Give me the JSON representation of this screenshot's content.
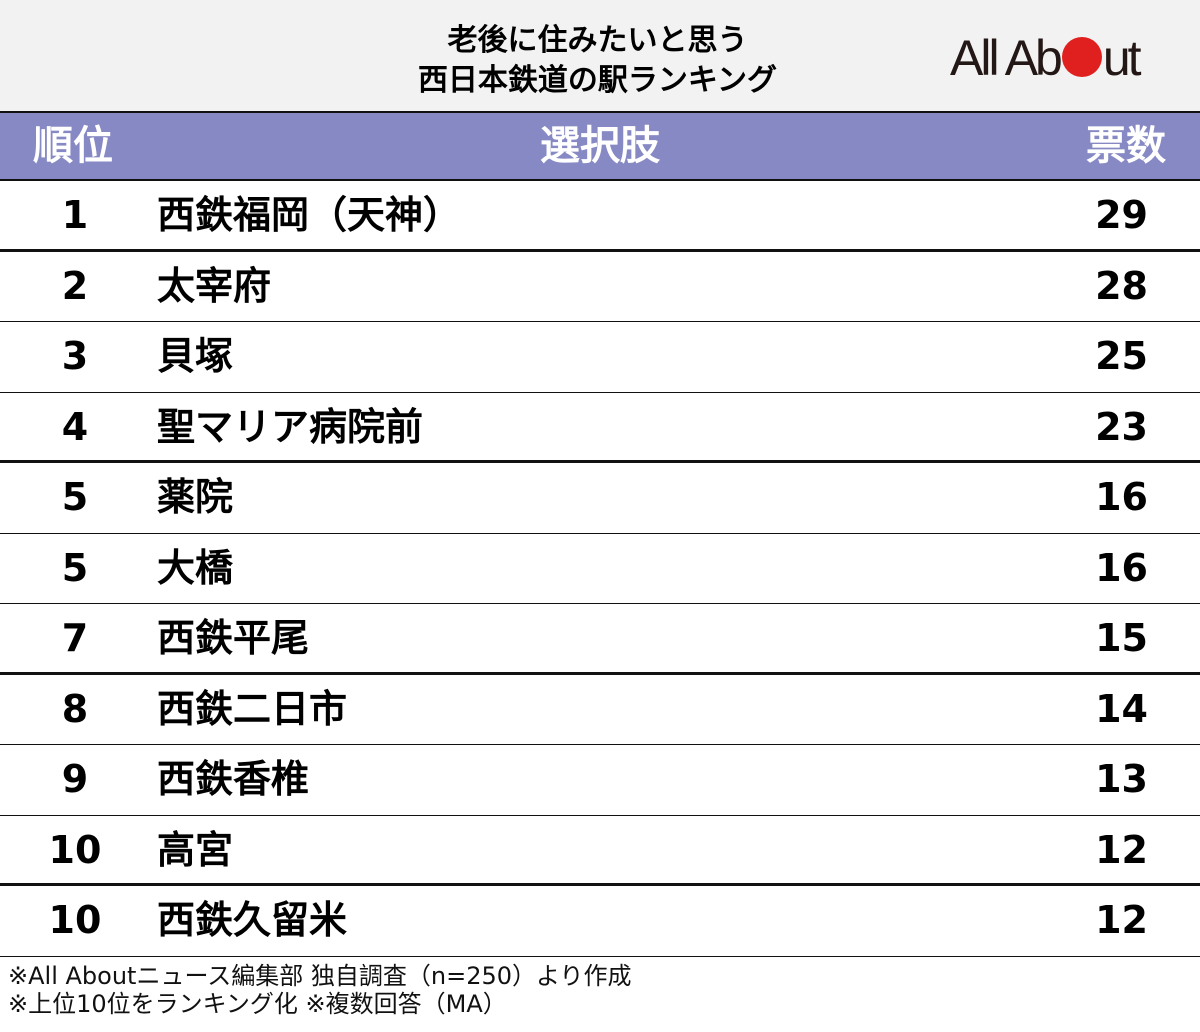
{
  "title": {
    "line1": "老後に住みたいと思う",
    "line2": "西日本鉄道の駅ランキング"
  },
  "logo": {
    "part1": "All Ab",
    "part2": "ut",
    "dot_color": "#e0201f"
  },
  "header": {
    "rank": "順位",
    "choice": "選択肢",
    "votes": "票数",
    "bg_color": "#8789c4"
  },
  "rows": [
    {
      "rank": "1",
      "name": "西鉄福岡（天神）",
      "votes": "29"
    },
    {
      "rank": "2",
      "name": "太宰府",
      "votes": "28"
    },
    {
      "rank": "3",
      "name": "貝塚",
      "votes": "25"
    },
    {
      "rank": "4",
      "name": "聖マリア病院前",
      "votes": "23"
    },
    {
      "rank": "5",
      "name": "薬院",
      "votes": "16"
    },
    {
      "rank": "5",
      "name": "大橋",
      "votes": "16"
    },
    {
      "rank": "7",
      "name": "西鉄平尾",
      "votes": "15"
    },
    {
      "rank": "8",
      "name": "西鉄二日市",
      "votes": "14"
    },
    {
      "rank": "9",
      "name": "西鉄香椎",
      "votes": "13"
    },
    {
      "rank": "10",
      "name": "高宮",
      "votes": "12"
    },
    {
      "rank": "10",
      "name": "西鉄久留米",
      "votes": "12"
    }
  ],
  "footer": {
    "line1": "※All Aboutニュース編集部 独自調査（n=250）より作成",
    "line2": "※上位10位をランキング化 ※複数回答（MA）"
  },
  "chart_data": {
    "type": "table",
    "title": "老後に住みたいと思う西日本鉄道の駅ランキング",
    "columns": [
      "順位",
      "選択肢",
      "票数"
    ],
    "categories": [
      "西鉄福岡（天神）",
      "太宰府",
      "貝塚",
      "聖マリア病院前",
      "薬院",
      "大橋",
      "西鉄平尾",
      "西鉄二日市",
      "西鉄香椎",
      "高宮",
      "西鉄久留米"
    ],
    "ranks": [
      1,
      2,
      3,
      4,
      5,
      5,
      7,
      8,
      9,
      10,
      10
    ],
    "values": [
      29,
      28,
      25,
      23,
      16,
      16,
      15,
      14,
      13,
      12,
      12
    ],
    "notes": [
      "※All Aboutニュース編集部 独自調査（n=250）より作成",
      "※上位10位をランキング化 ※複数回答（MA）"
    ]
  }
}
